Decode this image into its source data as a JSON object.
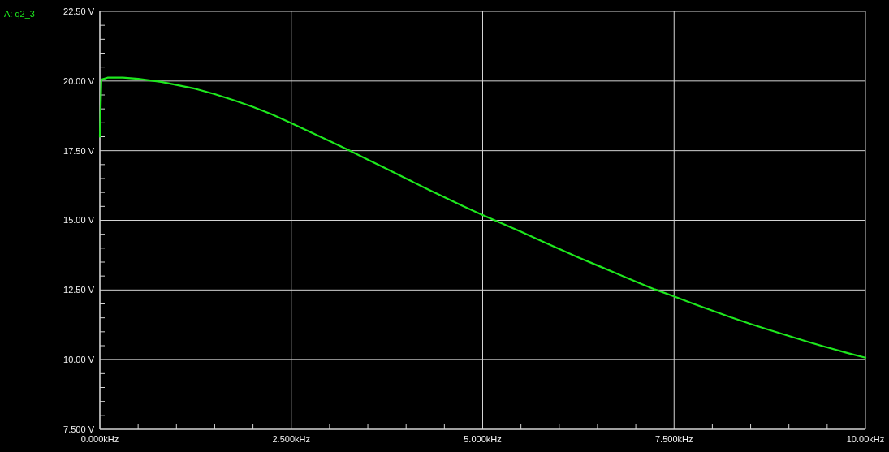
{
  "chart_data": {
    "type": "line",
    "x": [
      0,
      0.02,
      0.1,
      0.3,
      0.5,
      0.8,
      1.0,
      1.25,
      1.5,
      1.75,
      2.0,
      2.25,
      2.5,
      2.75,
      3.0,
      3.25,
      3.5,
      3.75,
      4.0,
      4.25,
      4.5,
      4.75,
      5.0,
      5.25,
      5.5,
      5.75,
      6.0,
      6.25,
      6.5,
      6.75,
      7.0,
      7.25,
      7.5,
      7.75,
      8.0,
      8.25,
      8.5,
      8.75,
      9.0,
      9.25,
      9.5,
      9.75,
      10.0
    ],
    "series": [
      {
        "name": "A: q2_3",
        "color": "#1ee81e",
        "values": [
          18.0,
          20.05,
          20.12,
          20.12,
          20.08,
          19.97,
          19.86,
          19.72,
          19.53,
          19.31,
          19.07,
          18.8,
          18.49,
          18.17,
          17.85,
          17.52,
          17.18,
          16.84,
          16.5,
          16.16,
          15.83,
          15.5,
          15.19,
          14.89,
          14.59,
          14.28,
          13.97,
          13.67,
          13.38,
          13.09,
          12.8,
          12.52,
          12.27,
          12.01,
          11.76,
          11.51,
          11.28,
          11.06,
          10.85,
          10.64,
          10.44,
          10.25,
          10.07
        ]
      }
    ],
    "xlim": [
      0,
      10
    ],
    "ylim": [
      7.5,
      22.5
    ],
    "xticks": [
      {
        "value": 0,
        "label": "0.000kHz"
      },
      {
        "value": 0.5,
        "label": null
      },
      {
        "value": 1,
        "label": null
      },
      {
        "value": 1.5,
        "label": null
      },
      {
        "value": 2,
        "label": null
      },
      {
        "value": 2.5,
        "label": "2.500kHz"
      },
      {
        "value": 3,
        "label": null
      },
      {
        "value": 3.5,
        "label": null
      },
      {
        "value": 4,
        "label": null
      },
      {
        "value": 4.5,
        "label": null
      },
      {
        "value": 5,
        "label": "5.000kHz"
      },
      {
        "value": 5.5,
        "label": null
      },
      {
        "value": 6,
        "label": null
      },
      {
        "value": 6.5,
        "label": null
      },
      {
        "value": 7,
        "label": null
      },
      {
        "value": 7.5,
        "label": "7.500kHz"
      },
      {
        "value": 8,
        "label": null
      },
      {
        "value": 8.5,
        "label": null
      },
      {
        "value": 9,
        "label": null
      },
      {
        "value": 9.5,
        "label": null
      },
      {
        "value": 10,
        "label": "10.00kHz"
      }
    ],
    "yticks": [
      {
        "value": 7.5,
        "label": "7.500 V"
      },
      {
        "value": 8,
        "label": null
      },
      {
        "value": 8.5,
        "label": null
      },
      {
        "value": 9,
        "label": null
      },
      {
        "value": 9.5,
        "label": null
      },
      {
        "value": 10,
        "label": "10.00 V"
      },
      {
        "value": 10.5,
        "label": null
      },
      {
        "value": 11,
        "label": null
      },
      {
        "value": 11.5,
        "label": null
      },
      {
        "value": 12,
        "label": null
      },
      {
        "value": 12.5,
        "label": "12.50 V"
      },
      {
        "value": 13,
        "label": null
      },
      {
        "value": 13.5,
        "label": null
      },
      {
        "value": 14,
        "label": null
      },
      {
        "value": 14.5,
        "label": null
      },
      {
        "value": 15,
        "label": "15.00 V"
      },
      {
        "value": 15.5,
        "label": null
      },
      {
        "value": 16,
        "label": null
      },
      {
        "value": 16.5,
        "label": null
      },
      {
        "value": 17,
        "label": null
      },
      {
        "value": 17.5,
        "label": "17.50 V"
      },
      {
        "value": 18,
        "label": null
      },
      {
        "value": 18.5,
        "label": null
      },
      {
        "value": 19,
        "label": null
      },
      {
        "value": 19.5,
        "label": null
      },
      {
        "value": 20,
        "label": "20.00 V"
      },
      {
        "value": 20.5,
        "label": null
      },
      {
        "value": 21,
        "label": null
      },
      {
        "value": 21.5,
        "label": null
      },
      {
        "value": 22,
        "label": null
      },
      {
        "value": 22.5,
        "label": "22.50 V"
      }
    ],
    "grid": true,
    "legend": "top left",
    "line_style": "solid"
  }
}
